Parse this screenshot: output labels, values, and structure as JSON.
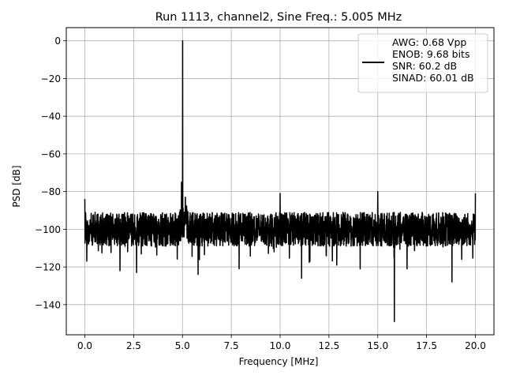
{
  "chart_data": {
    "type": "line",
    "title": "Run 1113, channel2, Sine Freq.: 5.005 MHz",
    "xlabel": "Frequency [MHz]",
    "ylabel": "PSD [dB]",
    "xlim": [
      -0.95,
      20.95
    ],
    "ylim": [
      -156,
      7
    ],
    "xticks": [
      0.0,
      2.5,
      5.0,
      7.5,
      10.0,
      12.5,
      15.0,
      17.5,
      20.0
    ],
    "xtick_labels": [
      "0.0",
      "2.5",
      "5.0",
      "7.5",
      "10.0",
      "12.5",
      "15.0",
      "17.5",
      "20.0"
    ],
    "yticks": [
      0,
      -20,
      -40,
      -60,
      -80,
      -100,
      -120,
      -140
    ],
    "ytick_labels": [
      "0",
      "−20",
      "−40",
      "−60",
      "−80",
      "−100",
      "−120",
      "−140"
    ],
    "grid": true,
    "legend_position": "top-right",
    "series": [
      {
        "legend_lines": [
          "AWG: 0.68 Vpp",
          "ENOB: 9.68 bits",
          "SNR: 60.2 dB",
          "SINAD: 60.01 dB"
        ],
        "color": "#000000",
        "noise_floor_db": -100,
        "features": [
          {
            "x": 0.0,
            "y": -84
          },
          {
            "x": 0.1,
            "y": -117
          },
          {
            "x": 1.8,
            "y": -122
          },
          {
            "x": 2.65,
            "y": -123
          },
          {
            "x": 5.005,
            "y": 0
          },
          {
            "x": 4.95,
            "y": -75
          },
          {
            "x": 5.15,
            "y": -83
          },
          {
            "x": 5.8,
            "y": -124
          },
          {
            "x": 7.9,
            "y": -121
          },
          {
            "x": 10.0,
            "y": -81
          },
          {
            "x": 11.1,
            "y": -126
          },
          {
            "x": 12.9,
            "y": -119
          },
          {
            "x": 14.1,
            "y": -121
          },
          {
            "x": 15.0,
            "y": -80
          },
          {
            "x": 15.85,
            "y": -149
          },
          {
            "x": 16.5,
            "y": -121
          },
          {
            "x": 18.8,
            "y": -128
          },
          {
            "x": 19.3,
            "y": -116
          },
          {
            "x": 20.0,
            "y": -81
          }
        ]
      }
    ]
  }
}
